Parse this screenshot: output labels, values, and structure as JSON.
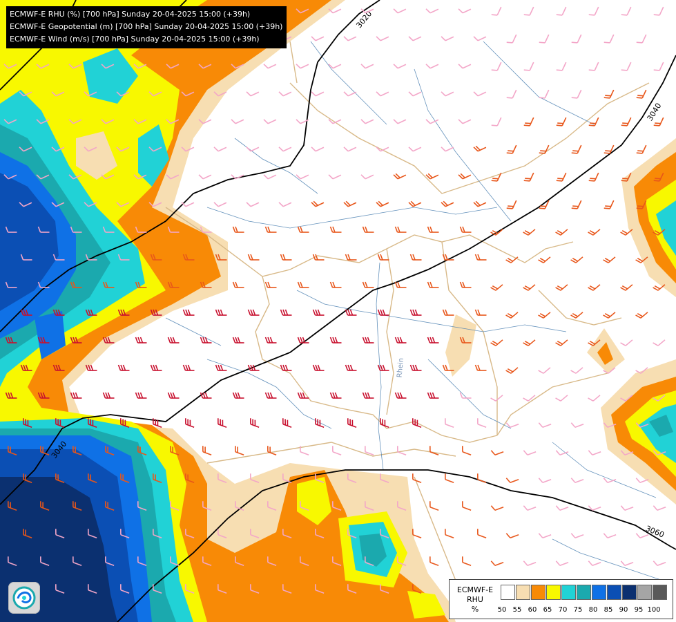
{
  "header": {
    "lines": [
      "ECMWF-E RHU (%) [700 hPa] Sunday 20-04-2025 15:00 (+39h)",
      "ECMWF-E Geopotential (m) [700 hPa] Sunday 20-04-2025 15:00 (+39h)",
      "ECMWF-E Wind (m/s) [700 hPa] Sunday 20-04-2025 15:00 (+39h)"
    ]
  },
  "contours": {
    "labels": [
      "3020",
      "3040",
      "3040",
      "3060"
    ]
  },
  "map_labels": {
    "river": "Rhein"
  },
  "legend": {
    "model": "ECMWF-E",
    "variable": "RHU",
    "unit": "%",
    "ticks": [
      "50",
      "55",
      "60",
      "65",
      "70",
      "75",
      "80",
      "85",
      "90",
      "95",
      "100"
    ],
    "colors": [
      "#ffffff",
      "#f7deb2",
      "#f88a06",
      "#f8f800",
      "#21d2d6",
      "#1ba9ae",
      "#0f71e6",
      "#0b4fb4",
      "#0b3070",
      "#a5a5a5",
      "#595959"
    ]
  },
  "colors": {
    "rh_55": "#f7deb2",
    "rh_60": "#f88a06",
    "rh_65": "#f8f800",
    "rh_70": "#21d2d6",
    "rh_75": "#1ba9ae",
    "rh_80": "#0f71e6",
    "rh_85": "#0b4fb4",
    "rh_90": "#0b3070",
    "border": "#d8b988",
    "river": "#4a7fb0",
    "contour": "#000000"
  }
}
